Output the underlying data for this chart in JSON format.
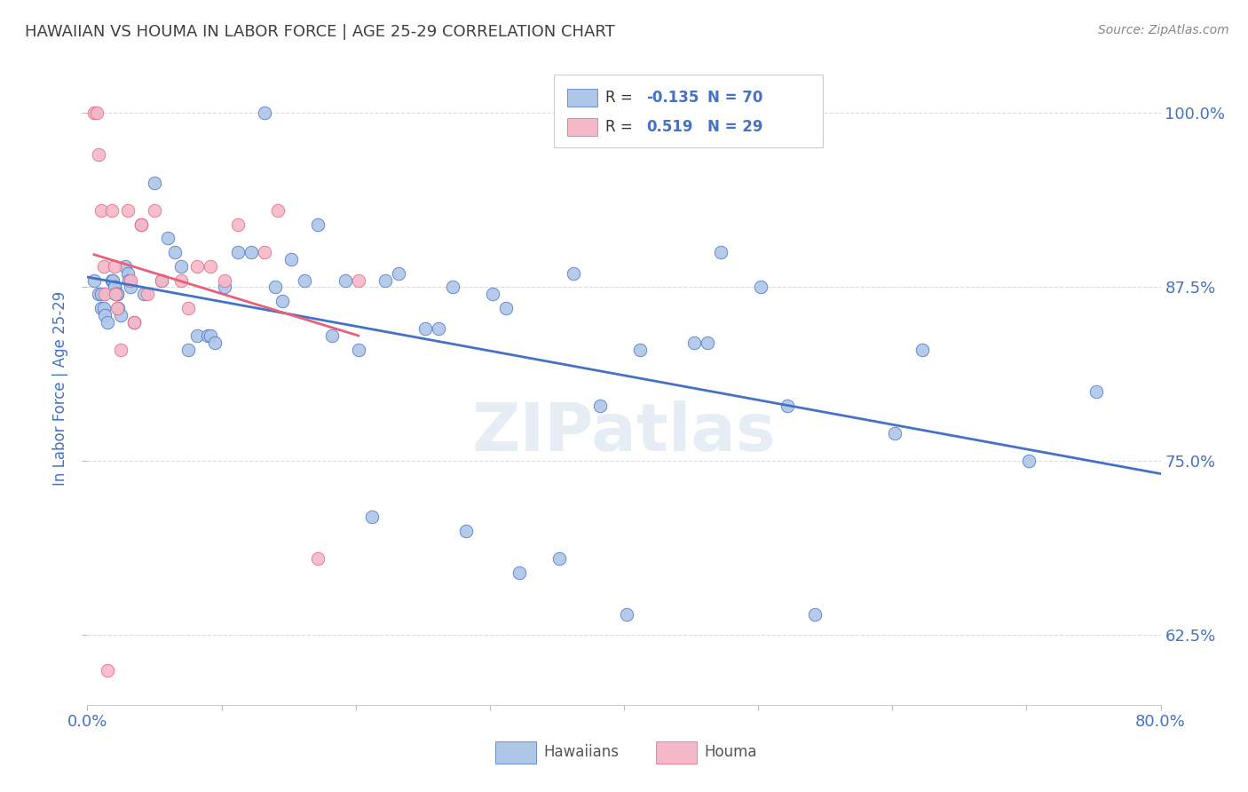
{
  "title": "HAWAIIAN VS HOUMA IN LABOR FORCE | AGE 25-29 CORRELATION CHART",
  "source": "Source: ZipAtlas.com",
  "ylabel": "In Labor Force | Age 25-29",
  "xlim": [
    0.0,
    0.8
  ],
  "ylim": [
    0.575,
    1.03
  ],
  "x_ticks": [
    0.0,
    0.1,
    0.2,
    0.3,
    0.4,
    0.5,
    0.6,
    0.7,
    0.8
  ],
  "y_ticks": [
    0.625,
    0.75,
    0.875,
    1.0
  ],
  "y_tick_labels": [
    "62.5%",
    "75.0%",
    "87.5%",
    "100.0%"
  ],
  "hawaiian_color": "#aec6e8",
  "houma_color": "#f4b8c8",
  "trend_hawaiian_color": "#4472c4",
  "trend_houma_color": "#e8607a",
  "R_hawaiian": "-0.135",
  "N_hawaiian": "70",
  "R_houma": "0.519",
  "N_houma": "29",
  "hawaiian_x": [
    0.005,
    0.008,
    0.01,
    0.01,
    0.012,
    0.013,
    0.015,
    0.018,
    0.019,
    0.02,
    0.02,
    0.021,
    0.022,
    0.022,
    0.023,
    0.025,
    0.028,
    0.03,
    0.031,
    0.032,
    0.035,
    0.04,
    0.042,
    0.05,
    0.055,
    0.06,
    0.065,
    0.07,
    0.075,
    0.082,
    0.09,
    0.092,
    0.095,
    0.102,
    0.112,
    0.122,
    0.132,
    0.14,
    0.145,
    0.152,
    0.162,
    0.172,
    0.182,
    0.192,
    0.202,
    0.212,
    0.222,
    0.232,
    0.252,
    0.262,
    0.272,
    0.282,
    0.302,
    0.312,
    0.322,
    0.352,
    0.362,
    0.382,
    0.402,
    0.412,
    0.452,
    0.462,
    0.472,
    0.502,
    0.522,
    0.542,
    0.602,
    0.622,
    0.702,
    0.752
  ],
  "hawaiian_y": [
    0.88,
    0.87,
    0.87,
    0.86,
    0.86,
    0.855,
    0.85,
    0.88,
    0.88,
    0.875,
    0.875,
    0.87,
    0.87,
    0.87,
    0.86,
    0.855,
    0.89,
    0.885,
    0.88,
    0.875,
    0.85,
    0.92,
    0.87,
    0.95,
    0.88,
    0.91,
    0.9,
    0.89,
    0.83,
    0.84,
    0.84,
    0.84,
    0.835,
    0.875,
    0.9,
    0.9,
    1.0,
    0.875,
    0.865,
    0.895,
    0.88,
    0.92,
    0.84,
    0.88,
    0.83,
    0.71,
    0.88,
    0.885,
    0.845,
    0.845,
    0.875,
    0.7,
    0.87,
    0.86,
    0.67,
    0.68,
    0.885,
    0.79,
    0.64,
    0.83,
    0.835,
    0.835,
    0.9,
    0.875,
    0.79,
    0.64,
    0.77,
    0.83,
    0.75,
    0.8
  ],
  "houma_x": [
    0.005,
    0.007,
    0.008,
    0.01,
    0.012,
    0.013,
    0.015,
    0.018,
    0.02,
    0.021,
    0.022,
    0.025,
    0.03,
    0.032,
    0.035,
    0.04,
    0.045,
    0.05,
    0.055,
    0.07,
    0.075,
    0.082,
    0.092,
    0.102,
    0.112,
    0.132,
    0.142,
    0.172,
    0.202
  ],
  "houma_y": [
    1.0,
    1.0,
    0.97,
    0.93,
    0.89,
    0.87,
    0.6,
    0.93,
    0.89,
    0.87,
    0.86,
    0.83,
    0.93,
    0.88,
    0.85,
    0.92,
    0.87,
    0.93,
    0.88,
    0.88,
    0.86,
    0.89,
    0.89,
    0.88,
    0.92,
    0.9,
    0.93,
    0.68,
    0.88
  ],
  "watermark": "ZIPatlas",
  "background_color": "#ffffff",
  "grid_color": "#dddddd",
  "title_color": "#404040",
  "axis_label_color": "#4472c4",
  "tick_label_color": "#4472c4"
}
